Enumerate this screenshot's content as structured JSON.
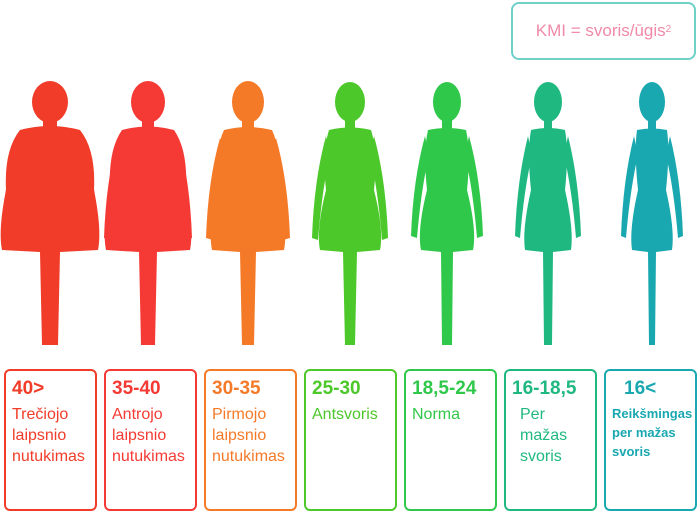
{
  "formula": {
    "text": "KMI = svoris/ūgis",
    "exponent": "2"
  },
  "categories": [
    {
      "value": "40>",
      "description": "Trečiojo laipsnio nutukimas",
      "color": "#f03c28"
    },
    {
      "value": "35-40",
      "description": "Antrojo laipsnio nutukimas",
      "color": "#f53a35"
    },
    {
      "value": "30-35",
      "description": "Pirmojo laipsnio nutukimas",
      "color": "#f57a28"
    },
    {
      "value": "25-30",
      "description": "Antsvoris",
      "color": "#4cc82a"
    },
    {
      "value": "18,5-24",
      "description": "Norma",
      "color": "#30c84a"
    },
    {
      "value": "16-18,5",
      "description": "Per mažas svoris",
      "color": "#1fb880"
    },
    {
      "value": "16<",
      "description": "Reikšmingas per mažas svoris",
      "color": "#1aa8b0"
    }
  ]
}
